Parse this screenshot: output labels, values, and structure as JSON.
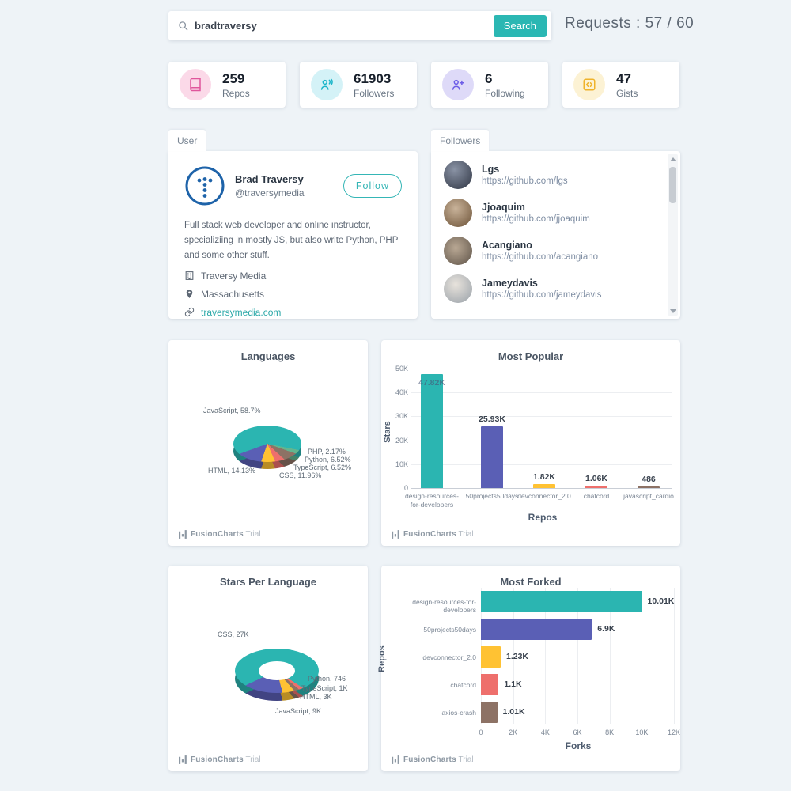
{
  "header": {
    "search_value": "bradtraversy",
    "search_button": "Search",
    "requests": "Requests : 57 / 60"
  },
  "stats": [
    {
      "value": "259",
      "label": "Repos",
      "icon": "repos-book-icon",
      "icon_bg": "#FBD9E8",
      "icon_color": "#E0569C"
    },
    {
      "value": "61903",
      "label": "Followers",
      "icon": "followers-users-icon",
      "icon_bg": "#D4F2F7",
      "icon_color": "#1AB5C9"
    },
    {
      "value": "6",
      "label": "Following",
      "icon": "user-plus-icon",
      "icon_bg": "#DEDAF8",
      "icon_color": "#6C5CE7"
    },
    {
      "value": "47",
      "label": "Gists",
      "icon": "code-icon",
      "icon_bg": "#FCF2D4",
      "icon_color": "#EFB32B"
    }
  ],
  "tabs": {
    "user": "User",
    "followers": "Followers"
  },
  "user": {
    "name": "Brad Traversy",
    "handle": "@traversymedia",
    "follow_label": "Follow",
    "bio": "Full stack web developer and online instructor, specializiing in mostly JS, but also write Python, PHP and some other stuff.",
    "company": "Traversy Media",
    "location": "Massachusetts",
    "website": "traversymedia.com"
  },
  "followers": [
    {
      "name": "Lgs",
      "url": "https://github.com/lgs"
    },
    {
      "name": "Jjoaquim",
      "url": "https://github.com/jjoaquim"
    },
    {
      "name": "Acangiano",
      "url": "https://github.com/acangiano"
    },
    {
      "name": "Jameydavis",
      "url": "https://github.com/jameydavis"
    }
  ],
  "watermark": {
    "brand": "FusionCharts",
    "trial": "Trial"
  },
  "palette": {
    "teal": "#2BB5B1",
    "purple": "#5A5FB5",
    "yellow": "#FFC233",
    "salmon": "#EE6F6C",
    "brown": "#8D7265",
    "green": "#62B58F",
    "accent": "#2BB7B3"
  },
  "chart_data": [
    {
      "type": "pie",
      "title": "Languages",
      "legend_position": "none",
      "slices": [
        {
          "label": "JavaScript",
          "value": 58.7,
          "display": "JavaScript, 58.7%",
          "color": "#2BB5B1"
        },
        {
          "label": "PHP",
          "value": 2.17,
          "display": "PHP, 2.17%",
          "color": "#62B58F"
        },
        {
          "label": "Python",
          "value": 6.52,
          "display": "Python, 6.52%",
          "color": "#8D7265"
        },
        {
          "label": "TypeScript",
          "value": 6.52,
          "display": "TypeScript, 6.52%",
          "color": "#EE6F6C"
        },
        {
          "label": "CSS",
          "value": 11.96,
          "display": "CSS, 11.96%",
          "color": "#FFC233"
        },
        {
          "label": "HTML",
          "value": 14.13,
          "display": "HTML, 14.13%",
          "color": "#5A5FB5"
        }
      ]
    },
    {
      "type": "bar",
      "title": "Most Popular",
      "xlabel": "Repos",
      "ylabel": "Stars",
      "ylim": [
        0,
        50000
      ],
      "yticks": [
        "0",
        "10K",
        "20K",
        "30K",
        "40K",
        "50K"
      ],
      "grid": true,
      "categories": [
        "design-resources-for-developers",
        "50projects50days",
        "devconnector_2.0",
        "chatcord",
        "javascript_cardio"
      ],
      "values": [
        47820,
        25930,
        1820,
        1060,
        486
      ],
      "value_labels": [
        "47.82K",
        "25.93K",
        "1.82K",
        "1.06K",
        "486"
      ],
      "colors": [
        "#2BB5B1",
        "#5A5FB5",
        "#FFC233",
        "#EE6F6C",
        "#8D7265"
      ]
    },
    {
      "type": "pie",
      "subtype": "doughnut",
      "title": "Stars Per Language",
      "legend_position": "none",
      "slices": [
        {
          "label": "CSS",
          "value": 27000,
          "display": "CSS, 27K",
          "color": "#2BB5B1"
        },
        {
          "label": "Python",
          "value": 746,
          "display": "Python, 746",
          "color": "#EE6F6C"
        },
        {
          "label": "TypeScript",
          "value": 1000,
          "display": "TypeScript, 1K",
          "color": "#8D7265"
        },
        {
          "label": "HTML",
          "value": 3000,
          "display": "HTML, 3K",
          "color": "#FFC233"
        },
        {
          "label": "JavaScript",
          "value": 9000,
          "display": "JavaScript, 9K",
          "color": "#5A5FB5"
        }
      ]
    },
    {
      "type": "bar",
      "subtype": "horizontal",
      "title": "Most Forked",
      "xlabel": "Forks",
      "ylabel": "Repos",
      "xlim": [
        0,
        12000
      ],
      "xticks": [
        "0",
        "2K",
        "4K",
        "6K",
        "8K",
        "10K",
        "12K"
      ],
      "grid": true,
      "categories": [
        "design-resources-for-developers",
        "50projects50days",
        "devconnector_2.0",
        "chatcord",
        "axios-crash"
      ],
      "values": [
        10010,
        6900,
        1230,
        1100,
        1010
      ],
      "value_labels": [
        "10.01K",
        "6.9K",
        "1.23K",
        "1.1K",
        "1.01K"
      ],
      "colors": [
        "#2BB5B1",
        "#5A5FB5",
        "#FFC233",
        "#EE6F6C",
        "#8D7265"
      ]
    }
  ]
}
